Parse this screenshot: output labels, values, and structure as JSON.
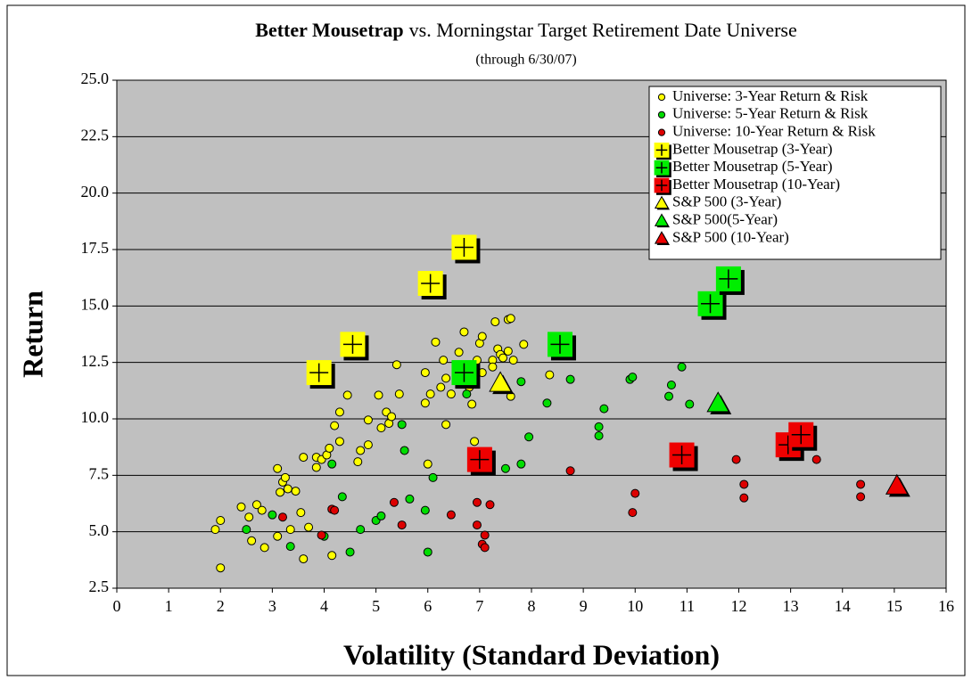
{
  "chart_data": {
    "type": "scatter",
    "title": {
      "bold": "Better Mousetrap",
      "rest": "vs. Morningstar Target Retirement Date Universe"
    },
    "subtitle": "(through 6/30/07)",
    "x_label": "Volatility (Standard Deviation)",
    "y_label": "Return",
    "xlim": [
      0,
      16
    ],
    "xticks": [
      0,
      1,
      2,
      3,
      4,
      5,
      6,
      7,
      8,
      9,
      10,
      11,
      12,
      13,
      14,
      15,
      16
    ],
    "ylim": [
      2.5,
      25
    ],
    "yticks": [
      {
        "value": 2.5,
        "label": "2.5"
      },
      {
        "value": 5,
        "label": "5.0"
      },
      {
        "value": 7.5,
        "label": "7.5"
      },
      {
        "value": 10,
        "label": "10.0"
      },
      {
        "value": 12.5,
        "label": "12.5"
      },
      {
        "value": 15,
        "label": "15.0"
      },
      {
        "value": 17.5,
        "label": "17.5"
      },
      {
        "value": 20,
        "label": "20.0"
      },
      {
        "value": 22.5,
        "label": "22.5"
      },
      {
        "value": 25,
        "label": "25.0"
      }
    ],
    "grid": true,
    "legend": "top-right",
    "series": [
      {
        "name": "Universe: 3-Year Return & Risk",
        "color": "#ffff00",
        "marker": "circle",
        "x": [
          1.9,
          2.0,
          2.0,
          2.4,
          2.55,
          2.6,
          2.7,
          2.8,
          2.85,
          3.1,
          3.15,
          3.2,
          3.25,
          3.1,
          3.3,
          3.35,
          3.45,
          3.55,
          3.6,
          3.6,
          3.7,
          3.85,
          3.85,
          3.95,
          4.05,
          4.1,
          4.15,
          4.2,
          4.3,
          4.3,
          4.45,
          4.65,
          4.7,
          4.85,
          4.85,
          5.05,
          5.1,
          5.2,
          5.25,
          5.3,
          5.4,
          5.45,
          5.95,
          5.95,
          6.0,
          6.05,
          6.15,
          6.25,
          6.35,
          6.3,
          6.35,
          6.45,
          6.6,
          6.7,
          6.8,
          6.85,
          6.9,
          6.95,
          7.0,
          7.05,
          7.05,
          7.25,
          7.25,
          7.3,
          7.35,
          7.4,
          7.45,
          7.55,
          7.55,
          7.6,
          7.6,
          7.85,
          8.35,
          7.65
        ],
        "values": [
          5.1,
          5.5,
          3.4,
          6.1,
          5.65,
          4.6,
          6.2,
          5.95,
          4.3,
          7.8,
          6.75,
          7.2,
          7.4,
          4.8,
          6.9,
          5.1,
          6.8,
          5.85,
          8.3,
          3.8,
          5.2,
          8.3,
          7.85,
          8.2,
          8.4,
          8.7,
          3.95,
          9.7,
          10.3,
          9.0,
          11.05,
          8.1,
          8.6,
          9.95,
          8.85,
          11.05,
          9.6,
          10.3,
          9.8,
          10.1,
          12.4,
          11.1,
          10.7,
          12.05,
          8.0,
          11.1,
          13.4,
          11.4,
          11.8,
          12.6,
          9.75,
          11.1,
          12.95,
          13.85,
          11.4,
          10.65,
          9.0,
          12.6,
          13.35,
          13.65,
          12.05,
          12.6,
          12.3,
          14.3,
          13.1,
          12.85,
          12.7,
          14.4,
          13.0,
          14.45,
          11.0,
          13.3,
          11.95,
          12.6
        ]
      },
      {
        "name": "Universe: 5-Year Return & Risk",
        "color": "#00dd00",
        "marker": "circle",
        "x": [
          2.5,
          3.0,
          3.35,
          4.0,
          4.15,
          4.35,
          4.5,
          4.7,
          5.0,
          5.1,
          5.5,
          5.55,
          5.65,
          5.95,
          6.0,
          6.1,
          6.75,
          6.8,
          7.5,
          7.8,
          7.8,
          7.95,
          8.3,
          8.75,
          9.3,
          9.3,
          9.4,
          9.9,
          9.95,
          10.65,
          10.7,
          10.9,
          11.05
        ],
        "values": [
          5.1,
          5.75,
          4.35,
          4.8,
          8.0,
          6.55,
          4.1,
          5.1,
          5.5,
          5.7,
          9.75,
          8.6,
          6.45,
          5.95,
          4.1,
          7.4,
          11.1,
          11.6,
          7.8,
          11.65,
          8.0,
          9.2,
          10.7,
          11.75,
          9.25,
          9.65,
          10.45,
          11.75,
          11.85,
          11.0,
          11.5,
          12.3,
          10.65
        ]
      },
      {
        "name": "Universe: 10-Year Return & Risk",
        "color": "#dd0000",
        "marker": "circle",
        "x": [
          3.2,
          3.95,
          4.15,
          4.2,
          5.35,
          5.5,
          6.45,
          6.95,
          6.95,
          7.05,
          7.1,
          7.1,
          7.2,
          8.75,
          9.95,
          10.0,
          11.95,
          12.1,
          12.1,
          13.5,
          14.35,
          14.35
        ],
        "values": [
          5.65,
          4.85,
          6.0,
          5.95,
          6.3,
          5.3,
          5.75,
          6.3,
          5.3,
          4.45,
          4.85,
          4.3,
          6.2,
          7.7,
          5.85,
          6.7,
          8.2,
          7.1,
          6.5,
          8.2,
          7.1,
          6.55
        ]
      },
      {
        "name": "Better Mousetrap (3-Year)",
        "color": "#ffff00",
        "marker": "plus-square",
        "x": [
          3.9,
          4.55,
          6.05,
          6.7
        ],
        "values": [
          12.05,
          13.3,
          16.0,
          17.6
        ]
      },
      {
        "name": "Better Mousetrap (5-Year)",
        "color": "#00ee00",
        "marker": "plus-square",
        "x": [
          6.7,
          8.55,
          11.45,
          11.8
        ],
        "values": [
          12.05,
          13.3,
          15.1,
          16.2
        ]
      },
      {
        "name": "Better Mousetrap (10-Year)",
        "color": "#ee0000",
        "marker": "plus-square",
        "x": [
          7.0,
          10.9,
          12.95,
          13.2
        ],
        "values": [
          8.2,
          8.4,
          8.85,
          9.3
        ]
      },
      {
        "name": "S&P 500 (3-Year)",
        "color": "#ffff00",
        "marker": "triangle",
        "x": [
          7.4
        ],
        "values": [
          11.6
        ]
      },
      {
        "name": "S&P 500(5-Year)",
        "color": "#00ee00",
        "marker": "triangle",
        "x": [
          11.6
        ],
        "values": [
          10.7
        ]
      },
      {
        "name": "S&P 500 (10-Year)",
        "color": "#ee0000",
        "marker": "triangle",
        "x": [
          15.05
        ],
        "values": [
          7.05
        ]
      }
    ]
  }
}
